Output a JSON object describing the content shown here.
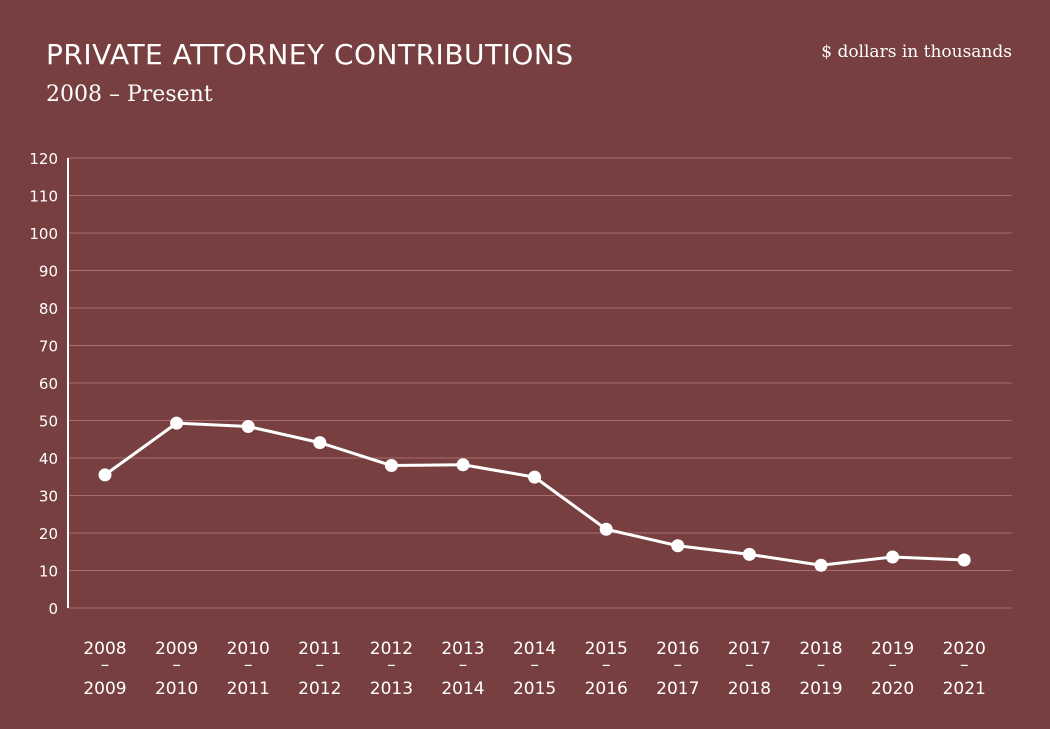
{
  "header": {
    "title": "PRIVATE ATTORNEY CONTRIBUTIONS",
    "subtitle": "2008 – Present",
    "unit_note": "$ dollars in thousands"
  },
  "colors": {
    "background": "#773f3f",
    "line": "#ffffff",
    "grid": "#a96b6b",
    "text": "#ffffff"
  },
  "chart_data": {
    "type": "line",
    "categories": [
      [
        "2008",
        "–",
        "2009"
      ],
      [
        "2009",
        "–",
        "2010"
      ],
      [
        "2010",
        "–",
        "2011"
      ],
      [
        "2011",
        "–",
        "2012"
      ],
      [
        "2012",
        "–",
        "2013"
      ],
      [
        "2013",
        "–",
        "2014"
      ],
      [
        "2014",
        "–",
        "2015"
      ],
      [
        "2015",
        "–",
        "2016"
      ],
      [
        "2016",
        "–",
        "2017"
      ],
      [
        "2017",
        "–",
        "2018"
      ],
      [
        "2018",
        "–",
        "2019"
      ],
      [
        "2019",
        "–",
        "2020"
      ],
      [
        "2020",
        "–",
        "2021"
      ]
    ],
    "values": [
      35.5,
      49.3,
      48.4,
      44.1,
      38.0,
      38.2,
      34.9,
      21.0,
      16.6,
      14.3,
      11.4,
      13.6,
      12.8
    ],
    "ylim": [
      0,
      120
    ],
    "yticks": [
      0,
      10,
      20,
      30,
      40,
      50,
      60,
      70,
      80,
      90,
      100,
      110,
      120
    ],
    "grid": true,
    "legend": "none"
  }
}
